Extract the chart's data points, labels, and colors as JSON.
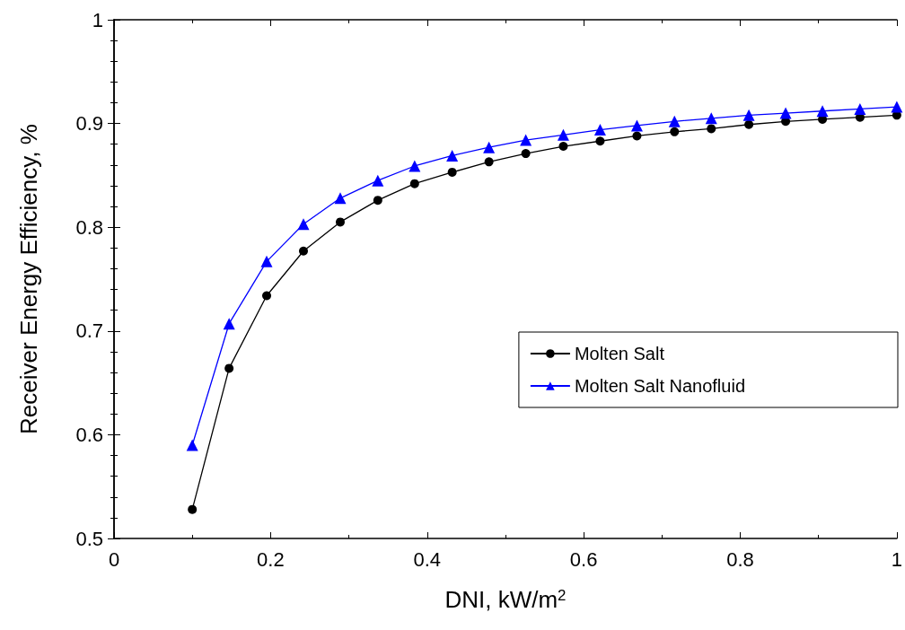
{
  "chart_data": {
    "type": "line",
    "xlabel": "DNI, kW/m$^{2}$",
    "ylabel": "Receiver Energy Efficiency, %",
    "x": [
      0.1,
      0.147,
      0.195,
      0.242,
      0.289,
      0.337,
      0.384,
      0.432,
      0.479,
      0.526,
      0.574,
      0.621,
      0.668,
      0.716,
      0.763,
      0.811,
      0.858,
      0.905,
      0.953,
      1.0
    ],
    "series": [
      {
        "name": "Molten Salt",
        "color": "#000000",
        "marker": "circle",
        "values": [
          0.528,
          0.664,
          0.734,
          0.777,
          0.805,
          0.826,
          0.842,
          0.853,
          0.863,
          0.871,
          0.878,
          0.883,
          0.888,
          0.892,
          0.895,
          0.899,
          0.902,
          0.904,
          0.906,
          0.908
        ]
      },
      {
        "name": "Molten Salt Nanofluid",
        "color": "#0000ff",
        "marker": "triangle",
        "values": [
          0.59,
          0.707,
          0.767,
          0.803,
          0.828,
          0.845,
          0.859,
          0.869,
          0.877,
          0.884,
          0.889,
          0.894,
          0.898,
          0.902,
          0.905,
          0.908,
          0.91,
          0.912,
          0.914,
          0.916
        ]
      }
    ],
    "xlim": [
      0,
      1
    ],
    "xticks": [
      0,
      0.2,
      0.4,
      0.6,
      0.8,
      1
    ],
    "ylim": [
      0.5,
      1
    ],
    "yticks": [
      0.5,
      0.6,
      0.7,
      0.8,
      0.9,
      1
    ],
    "grid": false,
    "legend": "right",
    "line_style": "solid"
  }
}
